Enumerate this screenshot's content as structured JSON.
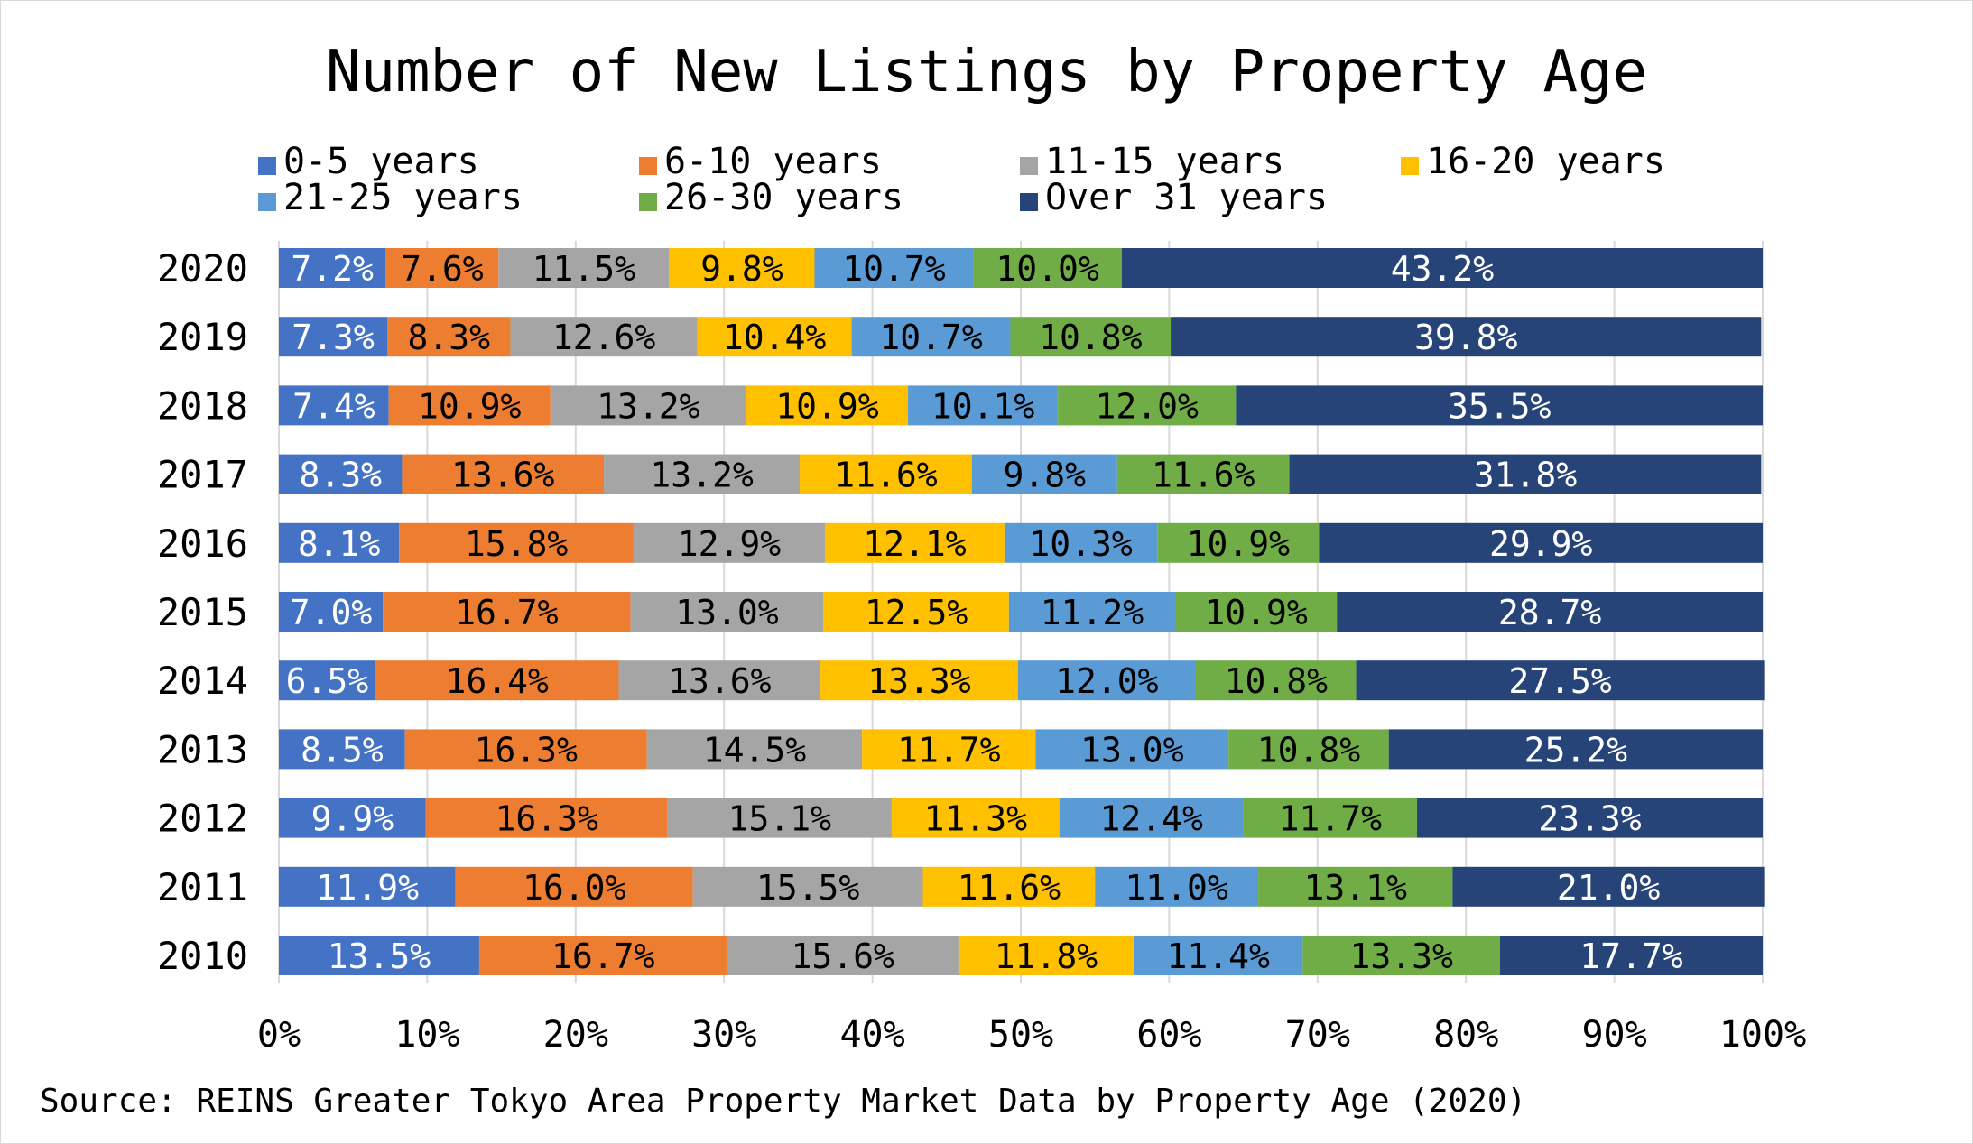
{
  "chart_data": {
    "type": "bar",
    "orientation": "horizontal",
    "stacked": true,
    "title": "Number of New Listings by Property Age",
    "source": "Source: REINS Greater Tokyo Area Property Market Data by Property Age (2020)",
    "categories": [
      "2020",
      "2019",
      "2018",
      "2017",
      "2016",
      "2015",
      "2014",
      "2013",
      "2012",
      "2011",
      "2010"
    ],
    "xlim": [
      0,
      100
    ],
    "x_ticks": [
      "0%",
      "10%",
      "20%",
      "30%",
      "40%",
      "50%",
      "60%",
      "70%",
      "80%",
      "90%",
      "100%"
    ],
    "grid": true,
    "legend_position": "top",
    "series": [
      {
        "name": "0-5 years",
        "color": "#4472C4",
        "label_color": "#FFFFFF",
        "values": [
          7.2,
          7.3,
          7.4,
          8.3,
          8.1,
          7.0,
          6.5,
          8.5,
          9.9,
          11.9,
          13.5
        ],
        "labels": [
          "7.2%",
          "7.3%",
          "7.4%",
          "8.3%",
          "8.1%",
          "7.0%",
          "6.5%",
          "8.5%",
          "9.9%",
          "11.9%",
          "13.5%"
        ]
      },
      {
        "name": "6-10 years",
        "color": "#ED7D31",
        "label_color": "#000000",
        "values": [
          7.6,
          8.3,
          10.9,
          13.6,
          15.8,
          16.7,
          16.4,
          16.3,
          16.3,
          16.0,
          16.7
        ],
        "labels": [
          "7.6%",
          "8.3%",
          "10.9%",
          "13.6%",
          "15.8%",
          "16.7%",
          "16.4%",
          "16.3%",
          "16.3%",
          "16.0%",
          "16.7%"
        ]
      },
      {
        "name": "11-15 years",
        "color": "#A5A5A5",
        "label_color": "#000000",
        "values": [
          11.5,
          12.6,
          13.2,
          13.2,
          12.9,
          13.0,
          13.6,
          14.5,
          15.1,
          15.5,
          15.6
        ],
        "labels": [
          "11.5%",
          "12.6%",
          "13.2%",
          "13.2%",
          "12.9%",
          "13.0%",
          "13.6%",
          "14.5%",
          "15.1%",
          "15.5%",
          "15.6%"
        ]
      },
      {
        "name": "16-20 years",
        "color": "#FFC000",
        "label_color": "#000000",
        "values": [
          9.8,
          10.4,
          10.9,
          11.6,
          12.1,
          12.5,
          13.3,
          11.7,
          11.3,
          11.6,
          11.8
        ],
        "labels": [
          "9.8%",
          "10.4%",
          "10.9%",
          "11.6%",
          "12.1%",
          "12.5%",
          "13.3%",
          "11.7%",
          "11.3%",
          "11.6%",
          "11.8%"
        ]
      },
      {
        "name": "21-25 years",
        "color": "#5B9BD5",
        "label_color": "#000000",
        "values": [
          10.7,
          10.7,
          10.1,
          9.8,
          10.3,
          11.2,
          12.0,
          13.0,
          12.4,
          11.0,
          11.4
        ],
        "labels": [
          "10.7%",
          "10.7%",
          "10.1%",
          "9.8%",
          "10.3%",
          "11.2%",
          "12.0%",
          "13.0%",
          "12.4%",
          "11.0%",
          "11.4%"
        ]
      },
      {
        "name": "26-30 years",
        "color": "#70AD47",
        "label_color": "#000000",
        "values": [
          10.0,
          10.8,
          12.0,
          11.6,
          10.9,
          10.9,
          10.8,
          10.8,
          11.7,
          13.1,
          13.3
        ],
        "labels": [
          "10.0%",
          "10.8%",
          "12.0%",
          "11.6%",
          "10.9%",
          "10.9%",
          "10.8%",
          "10.8%",
          "11.7%",
          "13.1%",
          "13.3%"
        ]
      },
      {
        "name": "Over 31 years",
        "color": "#264478",
        "label_color": "#FFFFFF",
        "values": [
          43.2,
          39.8,
          35.5,
          31.8,
          29.9,
          28.7,
          27.5,
          25.2,
          23.3,
          21.0,
          17.7
        ],
        "labels": [
          "43.2%",
          "39.8%",
          "35.5%",
          "31.8%",
          "29.9%",
          "28.7%",
          "27.5%",
          "25.2%",
          "23.3%",
          "21.0%",
          "17.7%"
        ]
      }
    ]
  }
}
